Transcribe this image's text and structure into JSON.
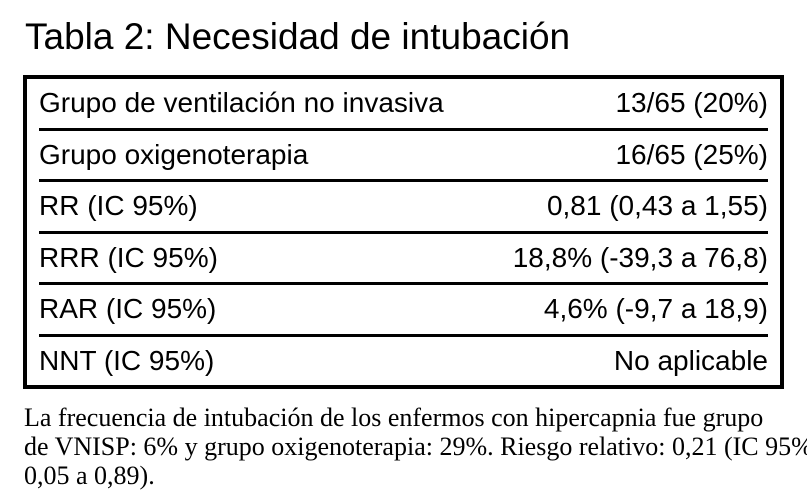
{
  "title": "Tabla 2: Necesidad de intubación",
  "table": {
    "rows": [
      {
        "label": "Grupo de ventilación no invasiva",
        "value": "13/65 (20%)"
      },
      {
        "label": "Grupo oxigenoterapia",
        "value": "16/65 (25%)"
      },
      {
        "label": "RR (IC 95%)",
        "value": "0,81 (0,43 a 1,55)"
      },
      {
        "label": "RRR (IC 95%)",
        "value": "18,8% (-39,3 a 76,8)"
      },
      {
        "label": "RAR (IC 95%)",
        "value": "4,6% (-9,7 a 18,9)"
      },
      {
        "label": "NNT (IC 95%)",
        "value": "No aplicable"
      }
    ]
  },
  "footnote": {
    "lines": [
      "La frecuencia de intubación de los enfermos con hipercapnia fue grupo",
      "de VNISP: 6% y grupo oxigenoterapia: 29%. Riesgo relativo: 0,21 (IC 95%",
      "0,05 a 0,89)."
    ]
  },
  "colors": {
    "text": "#000000",
    "border": "#000000",
    "background": "#ffffff"
  }
}
